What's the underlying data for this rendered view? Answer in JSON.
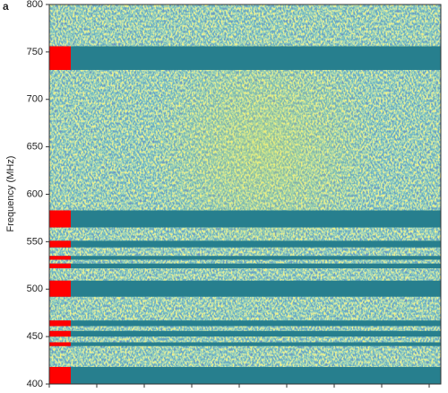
{
  "chart_data": {
    "type": "waterfall",
    "panel_label": "a",
    "y_label": "Frequency (MHz)",
    "ylim": [
      400,
      800
    ],
    "yticks": [
      400,
      450,
      500,
      550,
      600,
      650,
      700,
      750,
      800
    ],
    "masked_bands": [
      [
        731,
        756
      ],
      [
        565,
        583
      ],
      [
        544,
        551
      ],
      [
        531,
        535
      ],
      [
        522,
        527
      ],
      [
        492,
        509
      ],
      [
        461,
        467
      ],
      [
        450,
        456
      ],
      [
        440,
        444
      ],
      [
        400,
        418
      ]
    ],
    "mask_color": "#277f8e",
    "flag_color": "#ff0000"
  }
}
